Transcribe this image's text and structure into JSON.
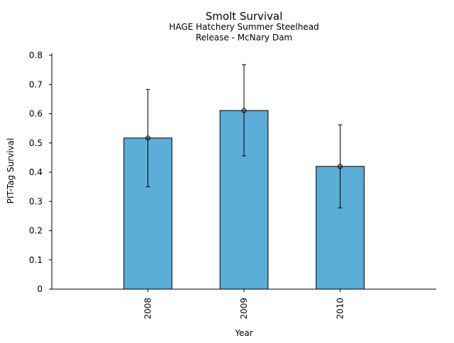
{
  "chart_data": {
    "type": "bar",
    "title": "Smolt Survival",
    "subtitle_lines": [
      "HAGE Hatchery Summer Steelhead",
      "Release - McNary Dam"
    ],
    "xlabel": "Year",
    "ylabel": "PIT-Tag Survival",
    "categories": [
      "2008",
      "2009",
      "2010"
    ],
    "values": [
      0.517,
      0.611,
      0.42
    ],
    "error_low": [
      0.35,
      0.456,
      0.278
    ],
    "error_high": [
      0.683,
      0.768,
      0.562
    ],
    "ylim": [
      0,
      0.8
    ],
    "yticks": [
      0,
      0.1,
      0.2,
      0.3,
      0.4,
      0.5,
      0.6,
      0.7,
      0.8
    ],
    "ytick_labels": [
      "0",
      "0.1",
      "0.2",
      "0.3",
      "0.4",
      "0.5",
      "0.6",
      "0.7",
      "0.8"
    ],
    "bar_color": "#5BACD7",
    "edge_color": "#000000",
    "grid": false,
    "legend": false
  }
}
